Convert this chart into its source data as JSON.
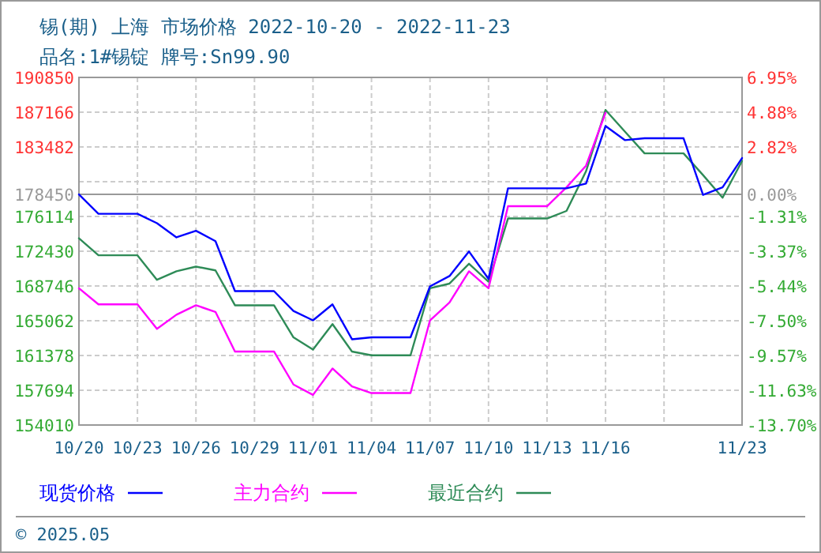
{
  "chart_data": {
    "type": "line",
    "title": "锡(期) 上海 市场价格 2022-10-20 - 2022-11-23",
    "subtitle": "品名:1#锡锭 牌号:Sn99.90",
    "annotations": [
      "© 2025.05"
    ],
    "x": [
      "2022-10-20",
      "2022-10-21",
      "2022-10-22",
      "2022-10-23",
      "2022-10-24",
      "2022-10-25",
      "2022-10-26",
      "2022-10-27",
      "2022-10-28",
      "2022-10-29",
      "2022-10-30",
      "2022-10-31",
      "2022-11-01",
      "2022-11-02",
      "2022-11-03",
      "2022-11-04",
      "2022-11-05",
      "2022-11-06",
      "2022-11-07",
      "2022-11-08",
      "2022-11-09",
      "2022-11-10",
      "2022-11-11",
      "2022-11-12",
      "2022-11-13",
      "2022-11-14",
      "2022-11-15",
      "2022-11-16",
      "2022-11-17",
      "2022-11-18",
      "2022-11-19",
      "2022-11-20",
      "2022-11-21",
      "2022-11-22",
      "2022-11-23"
    ],
    "series": [
      {
        "name": "现货价格",
        "color": "#0000ff",
        "values": [
          178450,
          176400,
          176400,
          176400,
          175400,
          173900,
          174600,
          173500,
          168200,
          168200,
          168200,
          166100,
          165100,
          166800,
          163100,
          163300,
          163300,
          163300,
          168700,
          169800,
          172400,
          169500,
          179100,
          179100,
          179100,
          179100,
          179600,
          185700,
          184200,
          184400,
          184400,
          184400,
          178400,
          179200,
          182300
        ]
      },
      {
        "name": "主力合约",
        "color": "#ff00ff",
        "values": [
          168500,
          166800,
          166800,
          166800,
          164200,
          165700,
          166700,
          166000,
          161800,
          161800,
          161800,
          158300,
          157200,
          160000,
          158100,
          157400,
          157400,
          157400,
          165100,
          167000,
          170300,
          168500,
          177200,
          177200,
          177200,
          179200,
          181500,
          187100,
          null,
          null,
          null,
          null,
          null,
          null,
          null
        ]
      },
      {
        "name": "最近合约",
        "color": "#2e8b57",
        "values": [
          173800,
          172000,
          172000,
          172000,
          169400,
          170300,
          170800,
          170400,
          166700,
          166700,
          166700,
          163300,
          162000,
          164700,
          161800,
          161400,
          161400,
          161400,
          168500,
          169000,
          171100,
          169200,
          175900,
          175900,
          175900,
          176700,
          180900,
          187400,
          185100,
          182800,
          182800,
          182800,
          180500,
          178100,
          182000
        ]
      }
    ],
    "xlim": [
      "2022-10-20",
      "2022-11-23"
    ],
    "xticks": [
      {
        "value": "2022-10-20",
        "label": "10/20"
      },
      {
        "value": "2022-10-23",
        "label": "10/23"
      },
      {
        "value": "2022-10-26",
        "label": "10/26"
      },
      {
        "value": "2022-10-29",
        "label": "10/29"
      },
      {
        "value": "2022-11-01",
        "label": "11/01"
      },
      {
        "value": "2022-11-04",
        "label": "11/04"
      },
      {
        "value": "2022-11-07",
        "label": "11/07"
      },
      {
        "value": "2022-11-10",
        "label": "11/10"
      },
      {
        "value": "2022-11-13",
        "label": "11/13"
      },
      {
        "value": "2022-11-16",
        "label": "11/16"
      },
      {
        "value": "2022-11-19",
        "label": null
      },
      {
        "value": "2022-11-23",
        "label": "11/23"
      }
    ],
    "ylim": [
      154010,
      190850
    ],
    "yticks": [
      154010,
      157694,
      161378,
      165062,
      168746,
      172430,
      176114,
      178450,
      {
        "value": 179798,
        "label": null
      },
      183482,
      187166,
      190850
    ],
    "y2lim": [
      -13.7,
      6.95
    ],
    "y2ticks": [
      {
        "value": -13.7,
        "label": "-13.70%"
      },
      {
        "value": -11.63,
        "label": "-11.63%"
      },
      {
        "value": -9.57,
        "label": "-9.57%"
      },
      {
        "value": -7.5,
        "label": "-7.50%"
      },
      {
        "value": -5.44,
        "label": "-5.44%"
      },
      {
        "value": -3.37,
        "label": "-3.37%"
      },
      {
        "value": -1.31,
        "label": "-1.31%"
      },
      {
        "value": 0,
        "label": "0.00%"
      },
      {
        "value": 2.82,
        "label": "2.82%"
      },
      {
        "value": 4.88,
        "label": "4.88%"
      },
      {
        "value": 6.95,
        "label": "6.95%"
      }
    ],
    "ref_lines": [
      {
        "axis": "y",
        "value": 178450,
        "color": "#999999"
      }
    ],
    "grid": true,
    "legend": "bottom"
  }
}
